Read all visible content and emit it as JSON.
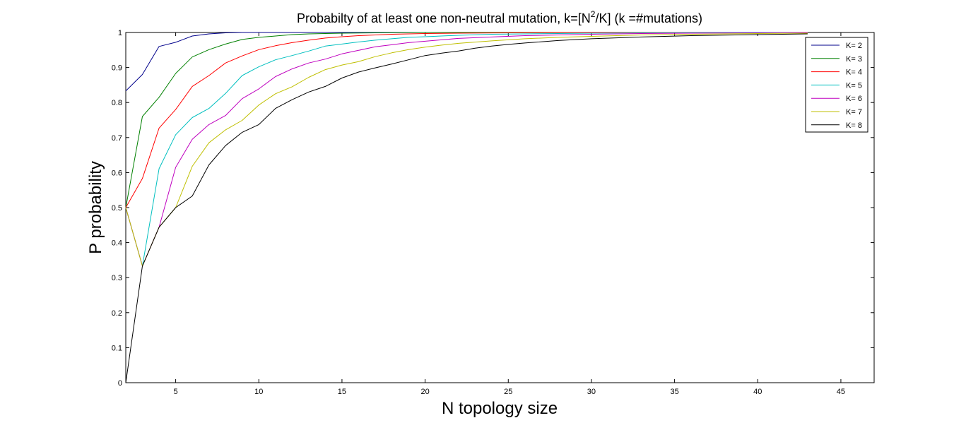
{
  "chart_data": {
    "type": "line",
    "title_prefix": "Probabilty of at least one non-neutral mutation, k=[N",
    "title_sup": "2",
    "title_suffix": "/K] (k =#mutations)",
    "xlabel": "N topology size",
    "ylabel": "P probability",
    "xlim": [
      2,
      47
    ],
    "ylim": [
      0,
      1
    ],
    "xticks": [
      5,
      10,
      15,
      20,
      25,
      30,
      35,
      40,
      45
    ],
    "yticks": [
      0,
      0.1,
      0.2,
      0.3,
      0.4,
      0.5,
      0.6,
      0.7,
      0.8,
      0.9,
      1
    ],
    "grid": false,
    "legend_position": "top-right",
    "series": [
      {
        "name": "K= 2",
        "color": "#00008B",
        "x": [
          2,
          3,
          4,
          5,
          6,
          7,
          8,
          9,
          10,
          15,
          20,
          25,
          30,
          35,
          40,
          43
        ],
        "y": [
          0.833,
          0.88,
          0.96,
          0.972,
          0.99,
          0.996,
          0.999,
          1,
          1,
          1,
          1,
          1,
          1,
          1,
          1,
          1
        ]
      },
      {
        "name": "K= 3",
        "color": "#008000",
        "x": [
          2,
          3,
          4,
          5,
          6,
          7,
          8,
          9,
          10,
          11,
          12,
          13,
          14,
          15,
          17,
          20,
          25,
          30,
          35,
          40,
          43
        ],
        "y": [
          0.5,
          0.76,
          0.815,
          0.883,
          0.93,
          0.951,
          0.967,
          0.98,
          0.986,
          0.99,
          0.994,
          0.996,
          0.997,
          0.998,
          0.999,
          1,
          1,
          1,
          1,
          1,
          1
        ]
      },
      {
        "name": "K= 4",
        "color": "#FF0000",
        "x": [
          2,
          3,
          4,
          5,
          6,
          7,
          8,
          9,
          10,
          11,
          12,
          13,
          14,
          15,
          16,
          17,
          18,
          19,
          20,
          22,
          25,
          30,
          35,
          40,
          43
        ],
        "y": [
          0.5,
          0.583,
          0.727,
          0.78,
          0.846,
          0.877,
          0.913,
          0.933,
          0.951,
          0.962,
          0.971,
          0.978,
          0.984,
          0.988,
          0.991,
          0.993,
          0.995,
          0.996,
          0.997,
          0.998,
          0.999,
          1,
          1,
          1,
          1
        ]
      },
      {
        "name": "K= 5",
        "color": "#00BFBF",
        "x": [
          2,
          3,
          4,
          5,
          6,
          7,
          8,
          9,
          10,
          11,
          12,
          13,
          14,
          15,
          16,
          17,
          18,
          19,
          20,
          22,
          24,
          26,
          28,
          30,
          33,
          36,
          40,
          43
        ],
        "y": [
          0.5,
          0.333,
          0.611,
          0.708,
          0.757,
          0.783,
          0.826,
          0.877,
          0.902,
          0.922,
          0.934,
          0.947,
          0.961,
          0.967,
          0.973,
          0.978,
          0.982,
          0.986,
          0.988,
          0.992,
          0.995,
          0.996,
          0.997,
          0.998,
          0.999,
          0.9995,
          1,
          1
        ]
      },
      {
        "name": "K= 6",
        "color": "#BF00BF",
        "x": [
          2,
          3,
          4,
          5,
          6,
          7,
          8,
          9,
          10,
          11,
          12,
          13,
          14,
          15,
          16,
          17,
          18,
          19,
          20,
          21,
          22,
          24,
          26,
          28,
          30,
          33,
          36,
          40,
          43
        ],
        "y": [
          0.5,
          0.333,
          0.444,
          0.615,
          0.695,
          0.737,
          0.763,
          0.811,
          0.839,
          0.874,
          0.896,
          0.913,
          0.924,
          0.939,
          0.949,
          0.959,
          0.965,
          0.971,
          0.975,
          0.979,
          0.983,
          0.987,
          0.991,
          0.993,
          0.995,
          0.997,
          0.998,
          0.999,
          1
        ]
      },
      {
        "name": "K= 7",
        "color": "#BFBF00",
        "x": [
          2,
          3,
          4,
          5,
          6,
          7,
          8,
          9,
          10,
          11,
          12,
          13,
          14,
          15,
          16,
          17,
          18,
          19,
          20,
          21,
          22,
          24,
          26,
          28,
          30,
          33,
          36,
          40,
          43
        ],
        "y": [
          0.5,
          0.333,
          0.444,
          0.5,
          0.618,
          0.685,
          0.722,
          0.749,
          0.793,
          0.825,
          0.845,
          0.872,
          0.894,
          0.907,
          0.917,
          0.931,
          0.942,
          0.951,
          0.958,
          0.964,
          0.969,
          0.976,
          0.982,
          0.986,
          0.989,
          0.993,
          0.995,
          0.997,
          0.998
        ]
      },
      {
        "name": "K= 8",
        "color": "#000000",
        "x": [
          2,
          3,
          4,
          5,
          6,
          7,
          8,
          9,
          10,
          11,
          12,
          13,
          14,
          15,
          16,
          17,
          18,
          19,
          20,
          21,
          22,
          23,
          24,
          25,
          26,
          28,
          30,
          33,
          36,
          40,
          43
        ],
        "y": [
          0,
          0.333,
          0.444,
          0.5,
          0.533,
          0.622,
          0.677,
          0.715,
          0.737,
          0.783,
          0.808,
          0.83,
          0.846,
          0.87,
          0.887,
          0.899,
          0.91,
          0.922,
          0.934,
          0.941,
          0.947,
          0.955,
          0.961,
          0.966,
          0.97,
          0.977,
          0.982,
          0.987,
          0.991,
          0.994,
          0.996
        ]
      }
    ]
  }
}
